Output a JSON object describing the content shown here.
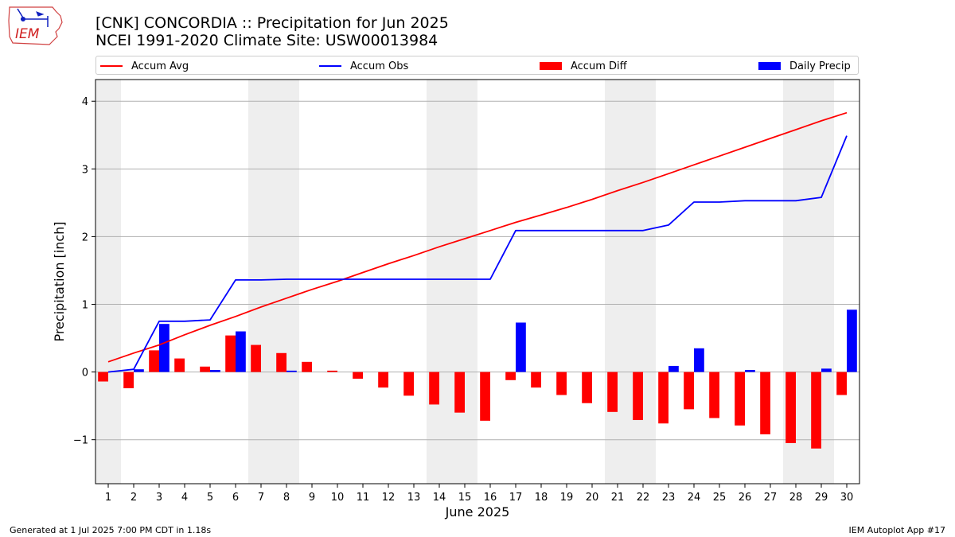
{
  "header": {
    "title_line1": "[CNK] CONCORDIA :: Precipitation for Jun 2025",
    "title_line2": "NCEI 1991-2020 Climate Site: USW00013984"
  },
  "logo": {
    "text": "IEM"
  },
  "footer": {
    "left": "Generated at 1 Jul 2025 7:00 PM CDT in 1.18s",
    "right": "IEM Autoplot App #17"
  },
  "chart_data": {
    "type": "bar",
    "xlabel": "June 2025",
    "ylabel": "Precipitation [inch]",
    "ylim": [
      -1.65,
      4.32
    ],
    "yticks": [
      -1,
      0,
      1,
      2,
      3,
      4
    ],
    "ytick_labels": [
      "−1",
      "0",
      "1",
      "2",
      "3",
      "4"
    ],
    "grid": true,
    "legend_position": "top",
    "days": [
      1,
      2,
      3,
      4,
      5,
      6,
      7,
      8,
      9,
      10,
      11,
      12,
      13,
      14,
      15,
      16,
      17,
      18,
      19,
      20,
      21,
      22,
      23,
      24,
      25,
      26,
      27,
      28,
      29,
      30
    ],
    "weekend_days": [
      1,
      7,
      8,
      14,
      15,
      21,
      22,
      28,
      29
    ],
    "series": [
      {
        "name": "Accum Avg",
        "kind": "line",
        "color": "#ff0000",
        "values": [
          0.15,
          0.28,
          0.4,
          0.55,
          0.69,
          0.82,
          0.96,
          1.09,
          1.22,
          1.34,
          1.47,
          1.6,
          1.72,
          1.85,
          1.97,
          2.09,
          2.21,
          2.32,
          2.43,
          2.55,
          2.68,
          2.8,
          2.93,
          3.06,
          3.19,
          3.32,
          3.45,
          3.58,
          3.71,
          3.83
        ]
      },
      {
        "name": "Accum Obs",
        "kind": "line",
        "color": "#0000ff",
        "values": [
          0.0,
          0.04,
          0.75,
          0.75,
          0.77,
          1.36,
          1.36,
          1.37,
          1.37,
          1.37,
          1.37,
          1.37,
          1.37,
          1.37,
          1.37,
          1.37,
          2.09,
          2.09,
          2.09,
          2.09,
          2.09,
          2.09,
          2.17,
          2.51,
          2.51,
          2.53,
          2.53,
          2.53,
          2.58,
          3.49
        ]
      },
      {
        "name": "Accum Diff",
        "kind": "bar",
        "color": "#ff0000",
        "values": [
          -0.14,
          -0.24,
          0.32,
          0.2,
          0.08,
          0.54,
          0.4,
          0.28,
          0.15,
          0.02,
          -0.1,
          -0.23,
          -0.35,
          -0.48,
          -0.6,
          -0.72,
          -0.12,
          -0.23,
          -0.34,
          -0.46,
          -0.59,
          -0.71,
          -0.76,
          -0.55,
          -0.68,
          -0.79,
          -0.92,
          -1.05,
          -1.13,
          -0.34
        ]
      },
      {
        "name": "Daily Precip",
        "kind": "bar",
        "color": "#0000ff",
        "values": [
          0.0,
          0.04,
          0.71,
          0.0,
          0.03,
          0.6,
          0.0,
          0.02,
          0.0,
          0.0,
          0.0,
          0.0,
          0.0,
          0.0,
          0.0,
          0.0,
          0.73,
          0.0,
          0.0,
          0.0,
          0.0,
          0.0,
          0.09,
          0.35,
          0.0,
          0.03,
          0.0,
          0.0,
          0.05,
          0.92
        ]
      }
    ]
  }
}
